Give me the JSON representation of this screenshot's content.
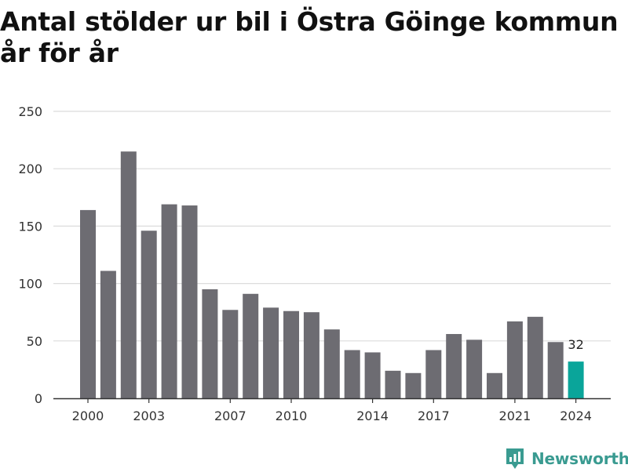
{
  "chart_data": {
    "type": "bar",
    "title": "Antal stölder ur bil i Östra Göinge kommun år för år",
    "xlabel": "",
    "ylabel": "",
    "categories": [
      "2000",
      "2001",
      "2002",
      "2003",
      "2004",
      "2005",
      "2006",
      "2007",
      "2008",
      "2009",
      "2010",
      "2011",
      "2012",
      "2013",
      "2014",
      "2015",
      "2016",
      "2017",
      "2018",
      "2019",
      "2020",
      "2021",
      "2022",
      "2023",
      "2024"
    ],
    "values": [
      164,
      111,
      215,
      146,
      169,
      168,
      95,
      77,
      91,
      79,
      76,
      75,
      60,
      42,
      40,
      24,
      22,
      42,
      56,
      51,
      22,
      67,
      71,
      49,
      32
    ],
    "x_tick_labels": [
      "2000",
      "2003",
      "2007",
      "2010",
      "2014",
      "2017",
      "2021",
      "2024"
    ],
    "y_ticks": [
      0,
      50,
      100,
      150,
      200,
      250
    ],
    "ylim": [
      0,
      250
    ],
    "grid": true,
    "highlight": {
      "category": "2024",
      "label": "32"
    },
    "colors": {
      "bar": "#6d6c72",
      "highlight": "#0aa59a",
      "grid": "#dcdcdc",
      "axis": "#333333",
      "text": "#333333"
    }
  },
  "brand": {
    "name": "Newsworthy",
    "color": "#3a9b91",
    "icon": "newsworthy-logo-icon"
  }
}
